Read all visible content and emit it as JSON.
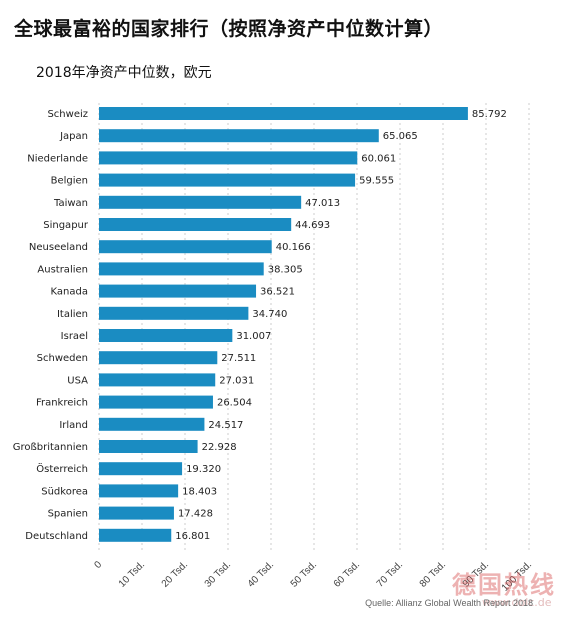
{
  "title": "全球最富裕的国家排行（按照净资产中位数计算）",
  "source": "Quelle: Allianz Global Wealth Report 2018",
  "watermark": "德国热线",
  "watermark_sub": "www.dolc.de",
  "chart_data": {
    "type": "bar",
    "orientation": "horizontal",
    "title": "全球最富裕的国家排行（按照净资产中位数计算）",
    "subtitle": "2018年净资产中位数，欧元",
    "xlim": [
      0,
      100
    ],
    "bar_color": "#1a8cc2",
    "categories": [
      "Schweiz",
      "Japan",
      "Niederlande",
      "Belgien",
      "Taiwan",
      "Singapur",
      "Neuseeland",
      "Australien",
      "Kanada",
      "Italien",
      "Israel",
      "Schweden",
      "USA",
      "Frankreich",
      "Irland",
      "Großbritannien",
      "Österreich",
      "Südkorea",
      "Spanien",
      "Deutschland"
    ],
    "values": [
      85.792,
      65.065,
      60.061,
      59.555,
      47.013,
      44.693,
      40.166,
      38.305,
      36.521,
      34.74,
      31.007,
      27.511,
      27.031,
      26.504,
      24.517,
      22.928,
      19.32,
      18.403,
      17.428,
      16.801
    ],
    "value_labels": [
      "85.792",
      "65.065",
      "60.061",
      "59.555",
      "47.013",
      "44.693",
      "40.166",
      "38.305",
      "36.521",
      "34.740",
      "31.007",
      "27.511",
      "27.031",
      "26.504",
      "24.517",
      "22.928",
      "19.320",
      "18.403",
      "17.428",
      "16.801"
    ],
    "x_ticks": [
      0,
      10,
      20,
      30,
      40,
      50,
      60,
      70,
      80,
      90,
      100
    ],
    "x_tick_labels": [
      "0",
      "10 Tsd.",
      "20 Tsd.",
      "30 Tsd.",
      "40 Tsd.",
      "50 Tsd.",
      "60 Tsd.",
      "70 Tsd.",
      "80 Tsd.",
      "90 Tsd.",
      "100 Tsd."
    ],
    "grid": true
  }
}
